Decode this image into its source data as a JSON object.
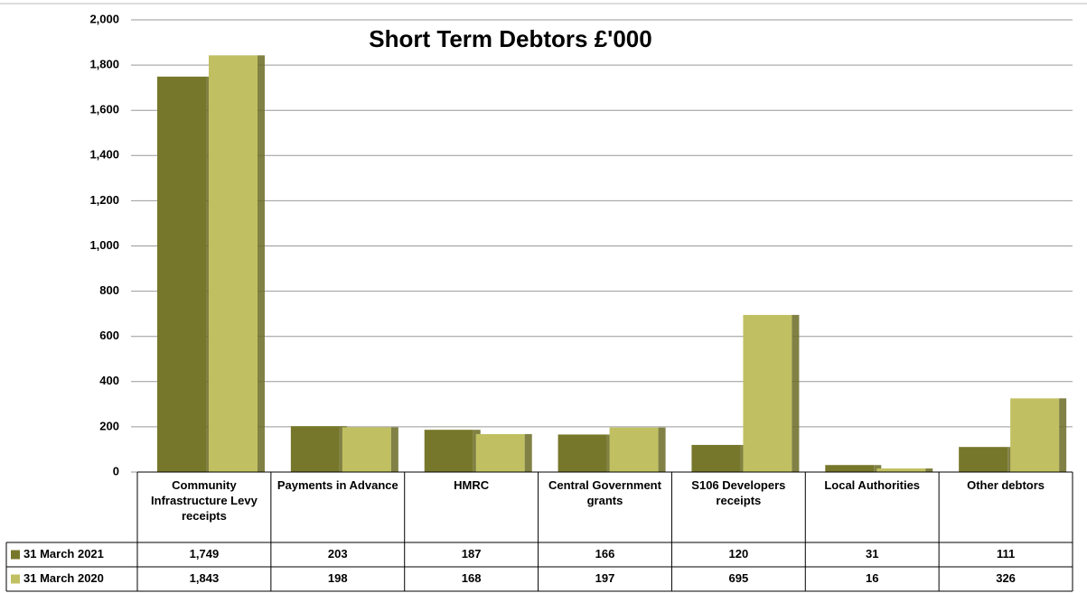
{
  "chart_data": {
    "type": "bar",
    "title": "Short Term Debtors £'000",
    "categories": [
      "Community Infrastructure Levy receipts",
      "Payments in Advance",
      "HMRC",
      "Central Government grants",
      "S106 Developers receipts",
      "Local Authorities",
      "Other debtors"
    ],
    "series": [
      {
        "name": "31 March 2021",
        "color": "#77772b",
        "values": [
          1749,
          203,
          187,
          166,
          120,
          31,
          111
        ],
        "value_labels": [
          "1,749",
          "203",
          "187",
          "166",
          "120",
          "31",
          "111"
        ]
      },
      {
        "name": "31 March 2020",
        "color": "#c0c062",
        "values": [
          1843,
          198,
          168,
          197,
          695,
          16,
          326
        ],
        "value_labels": [
          "1,843",
          "198",
          "168",
          "197",
          "695",
          "16",
          "326"
        ]
      }
    ],
    "ylim": [
      0,
      2000
    ],
    "yticks": [
      0,
      200,
      400,
      600,
      800,
      {
        "value": 1000,
        "label": "1,000"
      },
      {
        "value": 1200,
        "label": "1,200"
      },
      {
        "value": 1400,
        "label": "1,400"
      },
      {
        "value": 1600,
        "label": "1,600"
      },
      {
        "value": 1800,
        "label": "1,800"
      },
      {
        "value": 2000,
        "label": "2,000"
      }
    ],
    "grid": true
  }
}
